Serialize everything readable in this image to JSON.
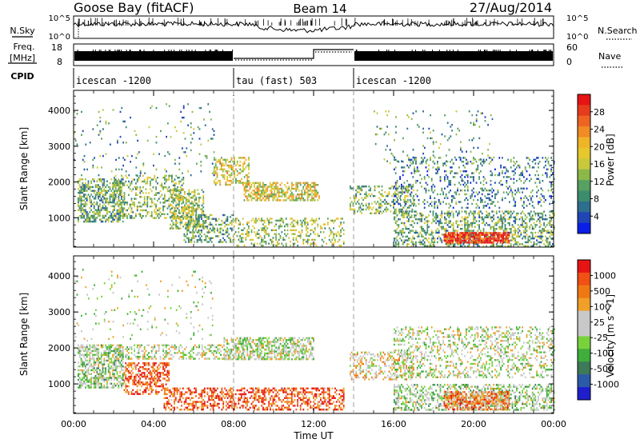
{
  "header": {
    "station": "Goose Bay (fitACF)",
    "beam": "Beam 14",
    "date": "27/Aug/2014"
  },
  "top_panels": {
    "nsky_label": "N.Sky",
    "nsearch_label": "N.Search",
    "nsky_ticks": [
      "10^5",
      "10^0"
    ],
    "nsearch_ticks": [
      "10^5",
      "10^0"
    ],
    "freq_label": "Freq.",
    "freq_unit": "[MHz]",
    "freq_ticks": [
      "18",
      "8"
    ],
    "nave_label": "Nave",
    "nave_ticks": [
      "60",
      "0"
    ],
    "cpid_label": "CPID",
    "cpid_segments": [
      {
        "label": "icescan -1200",
        "start_h": 0,
        "end_h": 8.0
      },
      {
        "label": "tau (fast) 503",
        "start_h": 8.0,
        "end_h": 14.0
      },
      {
        "label": "icescan -1200",
        "start_h": 14.0,
        "end_h": 24.0
      }
    ]
  },
  "chart_data": [
    {
      "type": "heatmap",
      "name": "power",
      "xlabel": "",
      "ylabel": "Slant Range [km]",
      "xlim": [
        0,
        24
      ],
      "ylim": [
        180,
        4560
      ],
      "y_ticks": [
        "1000",
        "2000",
        "3000",
        "4000"
      ],
      "colorbar_label": "Power [dB]",
      "colorbar_ticks": [
        "28",
        "24",
        "20",
        "16",
        "12",
        "8",
        "4"
      ],
      "colorbar_colors": [
        "#0a1ee6",
        "#1f46b4",
        "#2e6e8e",
        "#3c8c6e",
        "#56a060",
        "#8cb84a",
        "#c8c83c",
        "#e6c82e",
        "#f0b428",
        "#f08c23",
        "#f06423",
        "#e63c1e",
        "#e61414"
      ],
      "regions": [
        {
          "x": [
            0.2,
            2.5
          ],
          "y": [
            900,
            2100
          ],
          "density": 0.55,
          "level": 0.35
        },
        {
          "x": [
            2.0,
            5.5
          ],
          "y": [
            1000,
            2200
          ],
          "density": 0.35,
          "level": 0.4
        },
        {
          "x": [
            4.8,
            6.5
          ],
          "y": [
            700,
            1800
          ],
          "density": 0.5,
          "level": 0.45
        },
        {
          "x": [
            5.5,
            8.0
          ],
          "y": [
            300,
            1100
          ],
          "density": 0.4,
          "level": 0.35
        },
        {
          "x": [
            7.0,
            8.8
          ],
          "y": [
            1900,
            2700
          ],
          "density": 0.45,
          "level": 0.55
        },
        {
          "x": [
            8.5,
            12.3
          ],
          "y": [
            1500,
            2000
          ],
          "density": 0.6,
          "level": 0.55
        },
        {
          "x": [
            8.0,
            13.5
          ],
          "y": [
            200,
            1000
          ],
          "density": 0.3,
          "level": 0.45
        },
        {
          "x": [
            13.8,
            17.0
          ],
          "y": [
            1100,
            1900
          ],
          "density": 0.35,
          "level": 0.4
        },
        {
          "x": [
            16.0,
            24.0
          ],
          "y": [
            200,
            1200
          ],
          "density": 0.4,
          "level": 0.35
        },
        {
          "x": [
            18.5,
            21.8
          ],
          "y": [
            300,
            600
          ],
          "density": 0.85,
          "level": 0.9
        },
        {
          "x": [
            16.0,
            24.0
          ],
          "y": [
            1300,
            2700
          ],
          "density": 0.2,
          "level": 0.25
        },
        {
          "x": [
            0.0,
            7.0
          ],
          "y": [
            2200,
            4200
          ],
          "density": 0.04,
          "level": 0.3
        },
        {
          "x": [
            15.0,
            21.0
          ],
          "y": [
            2500,
            4000
          ],
          "density": 0.05,
          "level": 0.3
        }
      ]
    },
    {
      "type": "heatmap",
      "name": "velocity",
      "xlabel": "Time UT",
      "ylabel": "Slant Range [km]",
      "xlim": [
        0,
        24
      ],
      "ylim": [
        180,
        4560
      ],
      "x_ticks": [
        "00:00",
        "04:00",
        "08:00",
        "12:00",
        "16:00",
        "20:00",
        "00:00"
      ],
      "y_ticks": [
        "1000",
        "2000",
        "3000",
        "4000"
      ],
      "colorbar_label": "Velocity [m s^-1]",
      "colorbar_ticks": [
        "1000",
        "500",
        "100",
        "25",
        "-25",
        "-100",
        "-500",
        "-1000"
      ],
      "colorbar_colors": [
        "#1e1ecc",
        "#2b5aa8",
        "#3c7a5a",
        "#3fae3c",
        "#78d23c",
        "#c8c8c8",
        "#c8c8c8",
        "#f0a028",
        "#f07814",
        "#f05014",
        "#e61414"
      ],
      "regions": [
        {
          "x": [
            0.2,
            2.5
          ],
          "y": [
            900,
            2100
          ],
          "density": 0.6,
          "level": 0.45
        },
        {
          "x": [
            2.0,
            7.5
          ],
          "y": [
            1700,
            2100
          ],
          "density": 0.4,
          "level": 0.5
        },
        {
          "x": [
            2.5,
            4.8
          ],
          "y": [
            700,
            1600
          ],
          "density": 0.5,
          "level": 0.85
        },
        {
          "x": [
            4.5,
            8.0
          ],
          "y": [
            300,
            900
          ],
          "density": 0.45,
          "level": 0.85
        },
        {
          "x": [
            8.0,
            13.5
          ],
          "y": [
            300,
            900
          ],
          "density": 0.45,
          "level": 0.85
        },
        {
          "x": [
            7.5,
            12.0
          ],
          "y": [
            1700,
            2300
          ],
          "density": 0.6,
          "level": 0.5
        },
        {
          "x": [
            13.8,
            17.0
          ],
          "y": [
            1100,
            1900
          ],
          "density": 0.4,
          "level": 0.6
        },
        {
          "x": [
            16.0,
            24.0
          ],
          "y": [
            300,
            1000
          ],
          "density": 0.45,
          "level": 0.45
        },
        {
          "x": [
            18.5,
            21.8
          ],
          "y": [
            300,
            800
          ],
          "density": 0.7,
          "level": 0.75
        },
        {
          "x": [
            16.0,
            24.0
          ],
          "y": [
            1200,
            2600
          ],
          "density": 0.3,
          "level": 0.5
        },
        {
          "x": [
            0.0,
            7.0
          ],
          "y": [
            2200,
            4200
          ],
          "density": 0.04,
          "level": 0.5
        }
      ]
    }
  ]
}
